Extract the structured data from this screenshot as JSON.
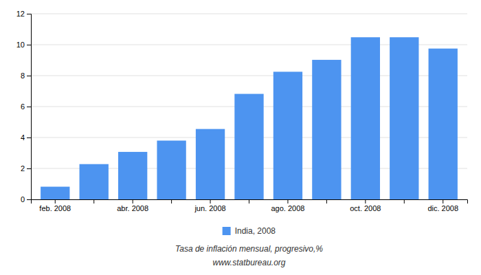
{
  "chart_data": {
    "type": "bar",
    "categories": [
      "feb. 2008",
      null,
      "abr. 2008",
      null,
      "jun. 2008",
      null,
      "ago. 2008",
      null,
      "oct. 2008",
      null,
      "dic. 2008"
    ],
    "series": [
      {
        "name": "India, 2008",
        "color": "#4d94f0",
        "values": [
          0.82,
          2.28,
          3.07,
          3.8,
          4.55,
          6.82,
          8.25,
          9.02,
          10.48,
          10.48,
          9.75
        ]
      }
    ],
    "ylim": [
      0,
      12
    ],
    "yticks": [
      0,
      2,
      4,
      6,
      8,
      10,
      12
    ],
    "xlabel": "Tasa de inflación mensual, progresivo,%",
    "annotations": [
      "www.statbureau.org"
    ],
    "grid": true,
    "legend": "bottom"
  }
}
